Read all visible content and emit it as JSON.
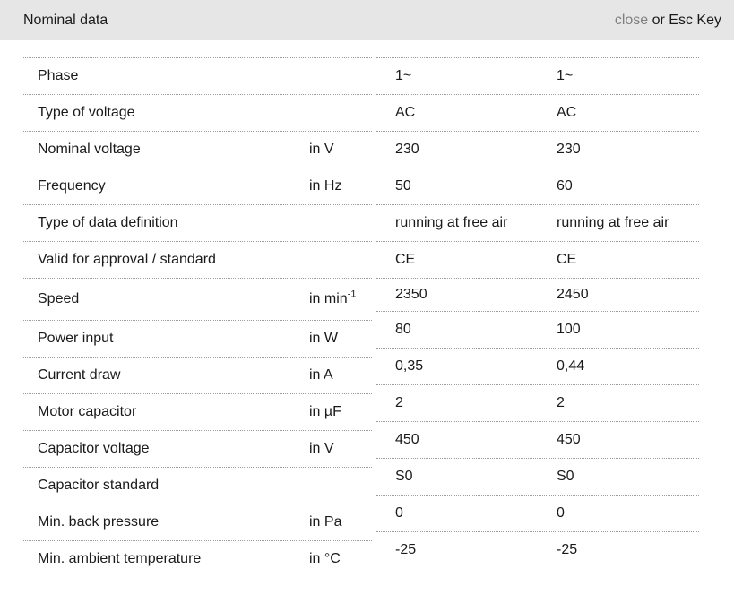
{
  "header": {
    "title": "Nominal data",
    "close_label": "close",
    "esc_hint": " or Esc Key"
  },
  "colors": {
    "header_bg": "#e6e6e6",
    "close_link": "#7f7f7f",
    "text": "#1a1a1a",
    "divider": "#9e9e9e"
  },
  "table": {
    "rows": [
      {
        "label": "Phase",
        "unit": "",
        "values": [
          "1~",
          "1~"
        ]
      },
      {
        "label": "Type of voltage",
        "unit": "",
        "values": [
          "AC",
          "AC"
        ]
      },
      {
        "label": "Nominal voltage",
        "unit": "in V",
        "values": [
          "230",
          "230"
        ]
      },
      {
        "label": "Frequency",
        "unit": "in Hz",
        "values": [
          "50",
          "60"
        ]
      },
      {
        "label": "Type of data definition",
        "unit": "",
        "values": [
          "running at free air",
          "running at free air"
        ]
      },
      {
        "label": "Valid for approval / standard",
        "unit": "",
        "values": [
          "CE",
          "CE"
        ]
      },
      {
        "label": "Speed",
        "unit": "in min",
        "unit_sup": "-1",
        "values": [
          "2350",
          "2450"
        ]
      },
      {
        "label": "Power input",
        "unit": "in W",
        "values": [
          "80",
          "100"
        ]
      },
      {
        "label": "Current draw",
        "unit": "in A",
        "values": [
          "0,35",
          "0,44"
        ]
      },
      {
        "label": "Motor capacitor",
        "unit": "in µF",
        "values": [
          "2",
          "2"
        ]
      },
      {
        "label": "Capacitor voltage",
        "unit": "in V",
        "values": [
          "450",
          "450"
        ]
      },
      {
        "label": "Capacitor standard",
        "unit": "",
        "values": [
          "S0",
          "S0"
        ]
      },
      {
        "label": "Min. back pressure",
        "unit": "in Pa",
        "values": [
          "0",
          "0"
        ]
      },
      {
        "label": "Min. ambient temperature",
        "unit": "in °C",
        "values": [
          "-25",
          "-25"
        ]
      }
    ]
  }
}
